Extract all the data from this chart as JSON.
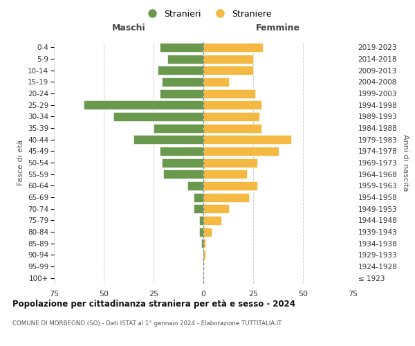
{
  "age_groups": [
    "100+",
    "95-99",
    "90-94",
    "85-89",
    "80-84",
    "75-79",
    "70-74",
    "65-69",
    "60-64",
    "55-59",
    "50-54",
    "45-49",
    "40-44",
    "35-39",
    "30-34",
    "25-29",
    "20-24",
    "15-19",
    "10-14",
    "5-9",
    "0-4"
  ],
  "birth_years": [
    "≤ 1923",
    "1924-1928",
    "1929-1933",
    "1934-1938",
    "1939-1943",
    "1944-1948",
    "1949-1953",
    "1954-1958",
    "1959-1963",
    "1964-1968",
    "1969-1973",
    "1974-1978",
    "1979-1983",
    "1984-1988",
    "1989-1993",
    "1994-1998",
    "1999-2003",
    "2004-2008",
    "2009-2013",
    "2014-2018",
    "2019-2023"
  ],
  "maschi": [
    0,
    0,
    0,
    1,
    2,
    2,
    5,
    5,
    8,
    20,
    21,
    22,
    35,
    25,
    45,
    60,
    22,
    21,
    23,
    18,
    22
  ],
  "femmine": [
    0,
    0,
    1,
    1,
    4,
    9,
    13,
    23,
    27,
    22,
    27,
    38,
    44,
    29,
    28,
    29,
    26,
    13,
    25,
    25,
    30
  ],
  "color_maschi": "#6a994e",
  "color_femmine": "#f4b942",
  "title": "Popolazione per cittadinanza straniera per età e sesso - 2024",
  "subtitle": "COMUNE DI MORBEGNO (SO) - Dati ISTAT al 1° gennaio 2024 - Elaborazione TUTTITALIA.IT",
  "xlabel_left": "Maschi",
  "xlabel_right": "Femmine",
  "ylabel_left": "Fasce di età",
  "ylabel_right": "Anni di nascita",
  "legend_maschi": "Stranieri",
  "legend_femmine": "Straniere",
  "xlim": 75,
  "background_color": "#ffffff",
  "grid_color": "#cccccc"
}
